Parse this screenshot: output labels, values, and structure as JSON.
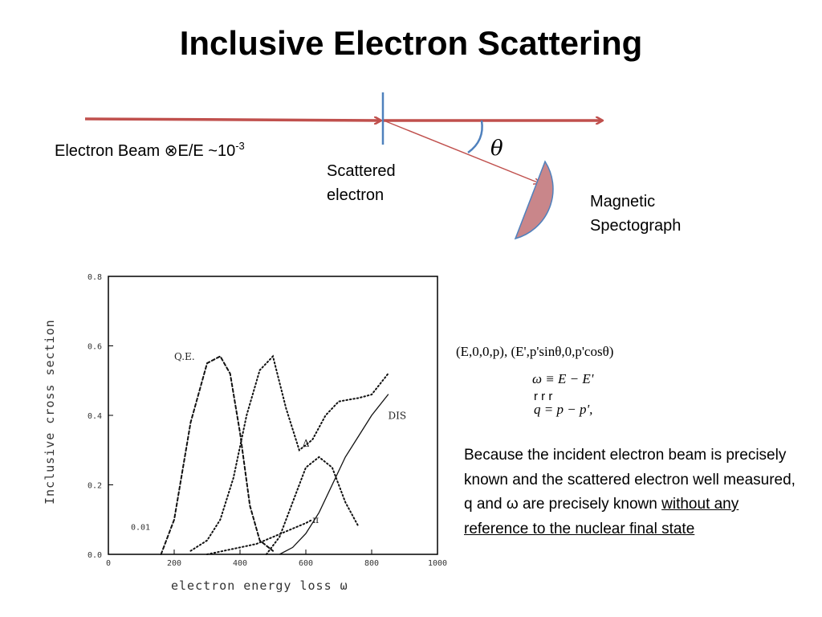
{
  "slide": {
    "title": "Inclusive Electron Scattering",
    "beam_label_main": "Electron Beam ⊗E/E ~10",
    "beam_label_exp": "-3",
    "theta_symbol": "θ",
    "scattered_label": "Scattered electron",
    "spectrograph_label": "Magnetic Spectograph",
    "eq_kinematics": "(E,0,0,p),  (E',p'sinθ,0,p'cosθ)",
    "eq_omega": "ω ≡ E − E'",
    "eq_vector_marks": "r    r    r",
    "eq_q": "q = p − p'",
    "eq_q_tail": ",",
    "text_part1": "Because the incident electron beam is precisely known and the scattered electron well  measured, q and ω  are precisely known ",
    "text_underlined": "without any reference to the nuclear final state",
    "colors": {
      "beam": "#c0504d",
      "marker": "#4f81bd",
      "spectrograph_fill": "#c9868a",
      "spectrograph_edge": "#4f81bd"
    }
  },
  "chart_data": {
    "type": "line",
    "xlabel": "electron energy loss ω",
    "ylabel": "Inclusive cross section",
    "xlim": [
      0,
      1000
    ],
    "ylim": [
      0,
      0.8
    ],
    "x_ticks": [
      "0",
      "200",
      "400",
      "600",
      "800",
      "1000"
    ],
    "y_ticks": [
      "0.0",
      "0.2",
      "0.4",
      "0.6",
      "0.8"
    ],
    "corner_label": "0.01",
    "series": [
      {
        "name": "Q.E.",
        "style": "dashed",
        "x": [
          160,
          200,
          250,
          300,
          340,
          370,
          400,
          430,
          460,
          500
        ],
        "y": [
          0.0,
          0.1,
          0.38,
          0.55,
          0.57,
          0.52,
          0.35,
          0.14,
          0.04,
          0.01
        ]
      },
      {
        "name": "Δ",
        "style": "dotted",
        "x": [
          480,
          520,
          560,
          600,
          640,
          680,
          720,
          760
        ],
        "y": [
          0.0,
          0.05,
          0.15,
          0.25,
          0.28,
          0.25,
          0.15,
          0.08
        ]
      },
      {
        "name": "",
        "style": "dotted",
        "x": [
          250,
          300,
          340,
          380,
          420,
          460,
          500,
          540,
          580,
          620,
          660,
          700,
          760,
          800,
          850
        ],
        "y": [
          0.01,
          0.04,
          0.1,
          0.22,
          0.4,
          0.53,
          0.57,
          0.42,
          0.3,
          0.33,
          0.4,
          0.44,
          0.45,
          0.46,
          0.52
        ]
      },
      {
        "name": "DIS",
        "style": "solid",
        "x": [
          520,
          560,
          600,
          640,
          680,
          720,
          760,
          800,
          850
        ],
        "y": [
          0.0,
          0.02,
          0.06,
          0.12,
          0.2,
          0.28,
          0.34,
          0.4,
          0.46
        ]
      },
      {
        "name": "π",
        "style": "dotted",
        "x": [
          300,
          350,
          400,
          450,
          500,
          550,
          600,
          620
        ],
        "y": [
          0.0,
          0.01,
          0.02,
          0.03,
          0.05,
          0.07,
          0.09,
          0.1
        ]
      }
    ],
    "annotations": [
      "Q.E.",
      "Δ",
      "DIS",
      "π"
    ]
  }
}
